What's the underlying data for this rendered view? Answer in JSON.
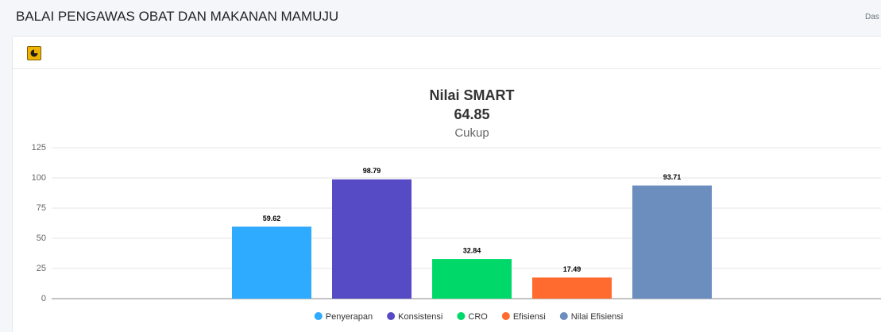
{
  "page_header": {
    "title": "BALAI PENGAWAS OBAT DAN MAKANAN MAMUJU",
    "breadcrumb": "Das"
  },
  "chart_data": {
    "type": "bar",
    "title": "Nilai SMART",
    "score": 64.85,
    "rating": "Cukup",
    "series": [
      {
        "name": "Penyerapan",
        "color": "#2eaaff",
        "values": [
          59.62
        ]
      },
      {
        "name": "Konsistensi",
        "color": "#564bc4",
        "values": [
          98.79
        ]
      },
      {
        "name": "CRO",
        "color": "#00d96a",
        "values": [
          32.84
        ]
      },
      {
        "name": "Efisiensi",
        "color": "#ff6b2e",
        "values": [
          17.49
        ]
      },
      {
        "name": "Nilai Efisiensi",
        "color": "#6c8ebf",
        "values": [
          93.71
        ]
      }
    ],
    "ylim": [
      0,
      125
    ],
    "yticks": [
      0,
      25,
      50,
      75,
      100,
      125
    ],
    "grid": true,
    "legend": "bottom"
  }
}
